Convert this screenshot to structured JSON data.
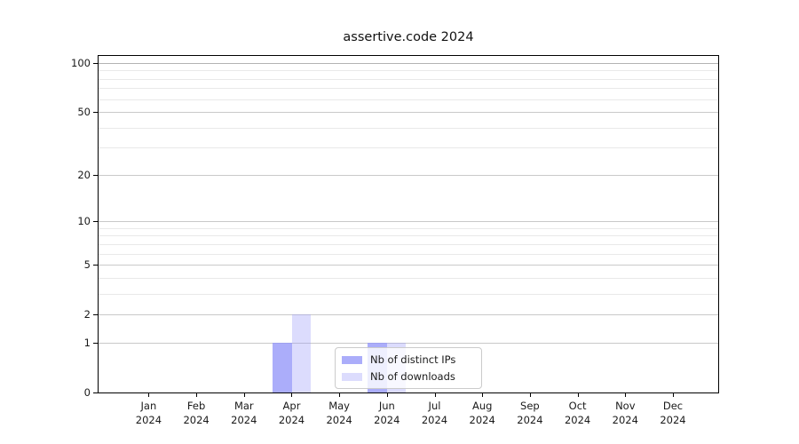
{
  "chart_data": {
    "type": "bar",
    "title": "assertive.code 2024",
    "categories": [
      "Jan",
      "Feb",
      "Mar",
      "Apr",
      "May",
      "Jun",
      "Jul",
      "Aug",
      "Sep",
      "Oct",
      "Nov",
      "Dec"
    ],
    "category_year_label": "2024",
    "series": [
      {
        "name": "Nb of distinct IPs",
        "color": "#9496f8",
        "opacity": 0.78,
        "values": [
          0,
          0,
          0,
          1,
          0,
          1,
          0,
          0,
          0,
          0,
          0,
          0
        ]
      },
      {
        "name": "Nb of downloads",
        "color": "#9496f8",
        "opacity": 0.33,
        "values": [
          0,
          0,
          0,
          2,
          0,
          1,
          0,
          0,
          0,
          0,
          0,
          0
        ]
      }
    ],
    "xlabel": "",
    "ylabel": "",
    "y_scale": "log1p",
    "y_ticks": [
      0,
      1,
      2,
      5,
      10,
      20,
      50,
      100
    ],
    "y_minor_gridlines": [
      3,
      4,
      6,
      7,
      8,
      9,
      30,
      40,
      60,
      70,
      80,
      90
    ],
    "y_max": 110.6,
    "grid": true,
    "legend_position": "inside-bottom-center"
  },
  "colors": {
    "grid_major": "#c9c9c9",
    "grid_minor": "#e9e9e9",
    "grid_top": "#b3b3b3",
    "axis": "#000000",
    "text": "#1a1a1a"
  }
}
